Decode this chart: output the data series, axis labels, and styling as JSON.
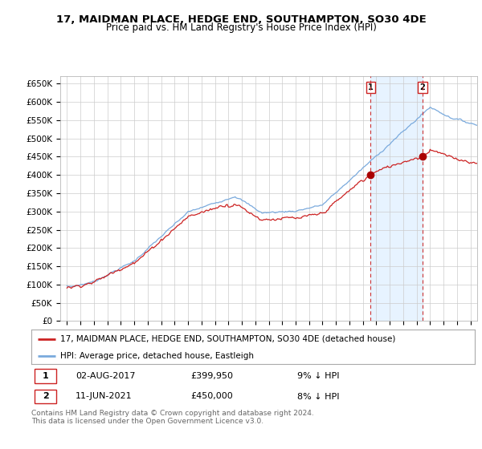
{
  "title": "17, MAIDMAN PLACE, HEDGE END, SOUTHAMPTON, SO30 4DE",
  "subtitle": "Price paid vs. HM Land Registry's House Price Index (HPI)",
  "ylabel_ticks": [
    "£0",
    "£50K",
    "£100K",
    "£150K",
    "£200K",
    "£250K",
    "£300K",
    "£350K",
    "£400K",
    "£450K",
    "£500K",
    "£550K",
    "£600K",
    "£650K"
  ],
  "ytick_values": [
    0,
    50000,
    100000,
    150000,
    200000,
    250000,
    300000,
    350000,
    400000,
    450000,
    500000,
    550000,
    600000,
    650000
  ],
  "ylim": [
    0,
    670000
  ],
  "xlim_start": 1994.5,
  "xlim_end": 2025.5,
  "sale1_date": 2017.58,
  "sale1_price": 399950,
  "sale1_label": "1",
  "sale2_date": 2021.44,
  "sale2_price": 450000,
  "sale2_label": "2",
  "hpi_color": "#7aaadd",
  "hpi_fill_color": "#ddeeff",
  "price_color": "#cc2222",
  "dot_color": "#aa0000",
  "vline_color": "#cc3333",
  "grid_color": "#cccccc",
  "background_color": "#ffffff",
  "legend_entry1": "17, MAIDMAN PLACE, HEDGE END, SOUTHAMPTON, SO30 4DE (detached house)",
  "legend_entry2": "HPI: Average price, detached house, Eastleigh",
  "table_row1": [
    "1",
    "02-AUG-2017",
    "£399,950",
    "9% ↓ HPI"
  ],
  "table_row2": [
    "2",
    "11-JUN-2021",
    "£450,000",
    "8% ↓ HPI"
  ],
  "footer": "Contains HM Land Registry data © Crown copyright and database right 2024.\nThis data is licensed under the Open Government Licence v3.0.",
  "title_fontsize": 9.5,
  "subtitle_fontsize": 8.5,
  "tick_fontsize": 7.5
}
